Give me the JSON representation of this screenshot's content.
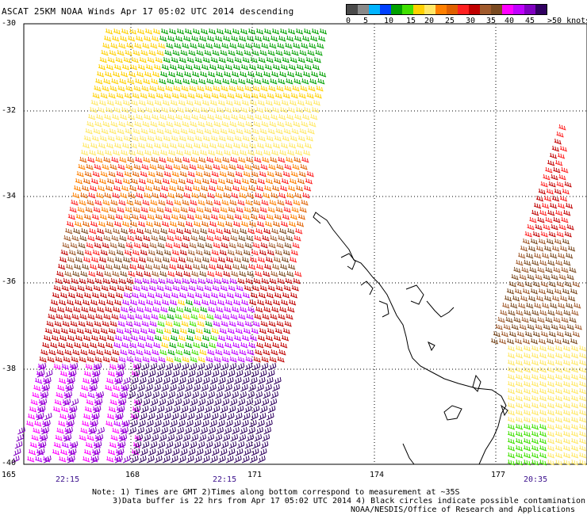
{
  "header": {
    "title": "ASCAT 25KM NOAA Winds  Apr 17 05:02 UTC 2014 descending"
  },
  "legend": {
    "colors": [
      "#4a4a4a",
      "#8a8a8a",
      "#00b4ff",
      "#0040ff",
      "#00a000",
      "#40e000",
      "#ffd000",
      "#ffe866",
      "#ff8000",
      "#e06000",
      "#ff2020",
      "#c00000",
      "#a05a2c",
      "#7a4a20",
      "#ff00ff",
      "#c000ff",
      "#8000c0",
      "#300060"
    ],
    "labels": [
      "0",
      "5",
      "10",
      "15",
      "20",
      "25",
      "30",
      "35",
      "40",
      "45",
      ">50 knots"
    ]
  },
  "axes": {
    "lat_labels": [
      "-30",
      "-32",
      "-34",
      "-36",
      "-38",
      "-40"
    ],
    "lon_labels": [
      "165",
      "168",
      "171",
      "174",
      "177"
    ]
  },
  "times": [
    "22:15",
    "22:15",
    "20:35"
  ],
  "notes": {
    "line1": "Note: 1) Times are GMT 2)Times along bottom correspond to measurement at ~35S",
    "line2": "3)Data buffer is 22 hrs from Apr 17 05:02 UTC 2014 4) Black circles indicate possible contamination",
    "line3": "NOAA/NESDIS/Office of Research and Applications"
  }
}
